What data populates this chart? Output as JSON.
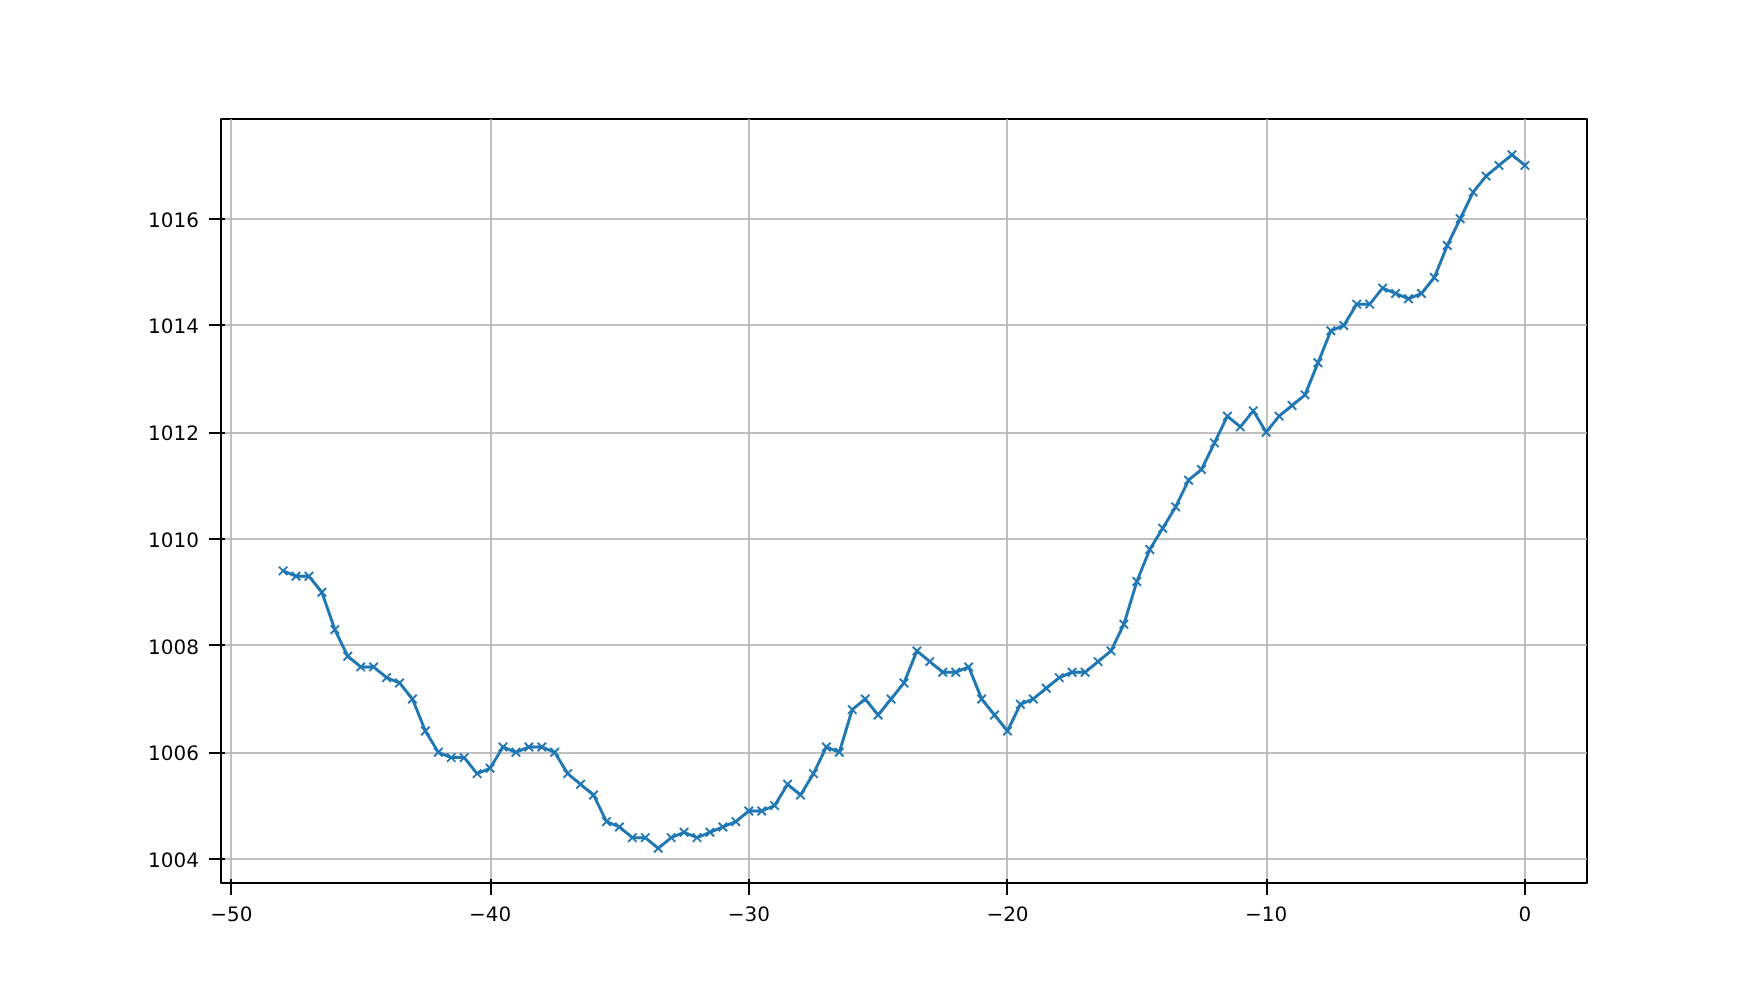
{
  "chart_data": {
    "type": "line",
    "marker": "cross",
    "grid": true,
    "line_style": "solid",
    "xlim": [
      -50.4,
      2.4
    ],
    "xticks": [
      -50,
      -40,
      -30,
      -20,
      -10,
      0
    ],
    "ylim": [
      1003.55,
      1017.87
    ],
    "yticks": [
      1004,
      1006,
      1008,
      1010,
      1012,
      1014,
      1016
    ],
    "x": [
      -48,
      -47.5,
      -47,
      -46.5,
      -46,
      -45.5,
      -45,
      -44.5,
      -44,
      -43.5,
      -43,
      -42.5,
      -42,
      -41.5,
      -41,
      -40.5,
      -40,
      -39.5,
      -39,
      -38.5,
      -38,
      -37.5,
      -37,
      -36.5,
      -36,
      -35.5,
      -35,
      -34.5,
      -34,
      -33.5,
      -33,
      -32.5,
      -32,
      -31.5,
      -31,
      -30.5,
      -30,
      -29.5,
      -29,
      -28.5,
      -28,
      -27.5,
      -27,
      -26.5,
      -26,
      -25.5,
      -25,
      -24.5,
      -24,
      -23.5,
      -23,
      -22.5,
      -22,
      -21.5,
      -21,
      -20.5,
      -20,
      -19.5,
      -19,
      -18.5,
      -18,
      -17.5,
      -17,
      -16.5,
      -16,
      -15.5,
      -15,
      -14.5,
      -14,
      -13.5,
      -13,
      -12.5,
      -12,
      -11.5,
      -11,
      -10.5,
      -10,
      -9.5,
      -9,
      -8.5,
      -8,
      -7.5,
      -7,
      -6.5,
      -6,
      -5.5,
      -5,
      -4.5,
      -4,
      -3.5,
      -3,
      -2.5,
      -2,
      -1.5,
      -1,
      -0.5,
      0
    ],
    "series": [
      {
        "color": "#1f77b4",
        "values": [
          1009.4,
          1009.3,
          1009.3,
          1009.0,
          1008.3,
          1007.8,
          1007.6,
          1007.6,
          1007.4,
          1007.3,
          1007.0,
          1006.4,
          1006.0,
          1005.9,
          1005.9,
          1005.6,
          1005.7,
          1006.1,
          1006.0,
          1006.1,
          1006.1,
          1006.0,
          1005.6,
          1005.4,
          1005.2,
          1004.7,
          1004.6,
          1004.4,
          1004.4,
          1004.2,
          1004.4,
          1004.5,
          1004.4,
          1004.5,
          1004.6,
          1004.7,
          1004.9,
          1004.9,
          1005.0,
          1005.4,
          1005.2,
          1005.6,
          1006.1,
          1006.0,
          1006.8,
          1007.0,
          1006.7,
          1007.0,
          1007.3,
          1007.9,
          1007.7,
          1007.5,
          1007.5,
          1007.6,
          1007.0,
          1006.7,
          1006.4,
          1006.9,
          1007.0,
          1007.2,
          1007.4,
          1007.5,
          1007.5,
          1007.7,
          1007.9,
          1008.4,
          1009.2,
          1009.8,
          1010.2,
          1010.6,
          1011.1,
          1011.3,
          1011.8,
          1012.3,
          1012.1,
          1012.4,
          1012.0,
          1012.3,
          1012.5,
          1012.7,
          1013.3,
          1013.9,
          1014.0,
          1014.4,
          1014.4,
          1014.7,
          1014.6,
          1014.5,
          1014.6,
          1014.9,
          1015.5,
          1016.0,
          1016.5,
          1016.8,
          1017.0,
          1017.2,
          1017.0
        ]
      }
    ]
  }
}
